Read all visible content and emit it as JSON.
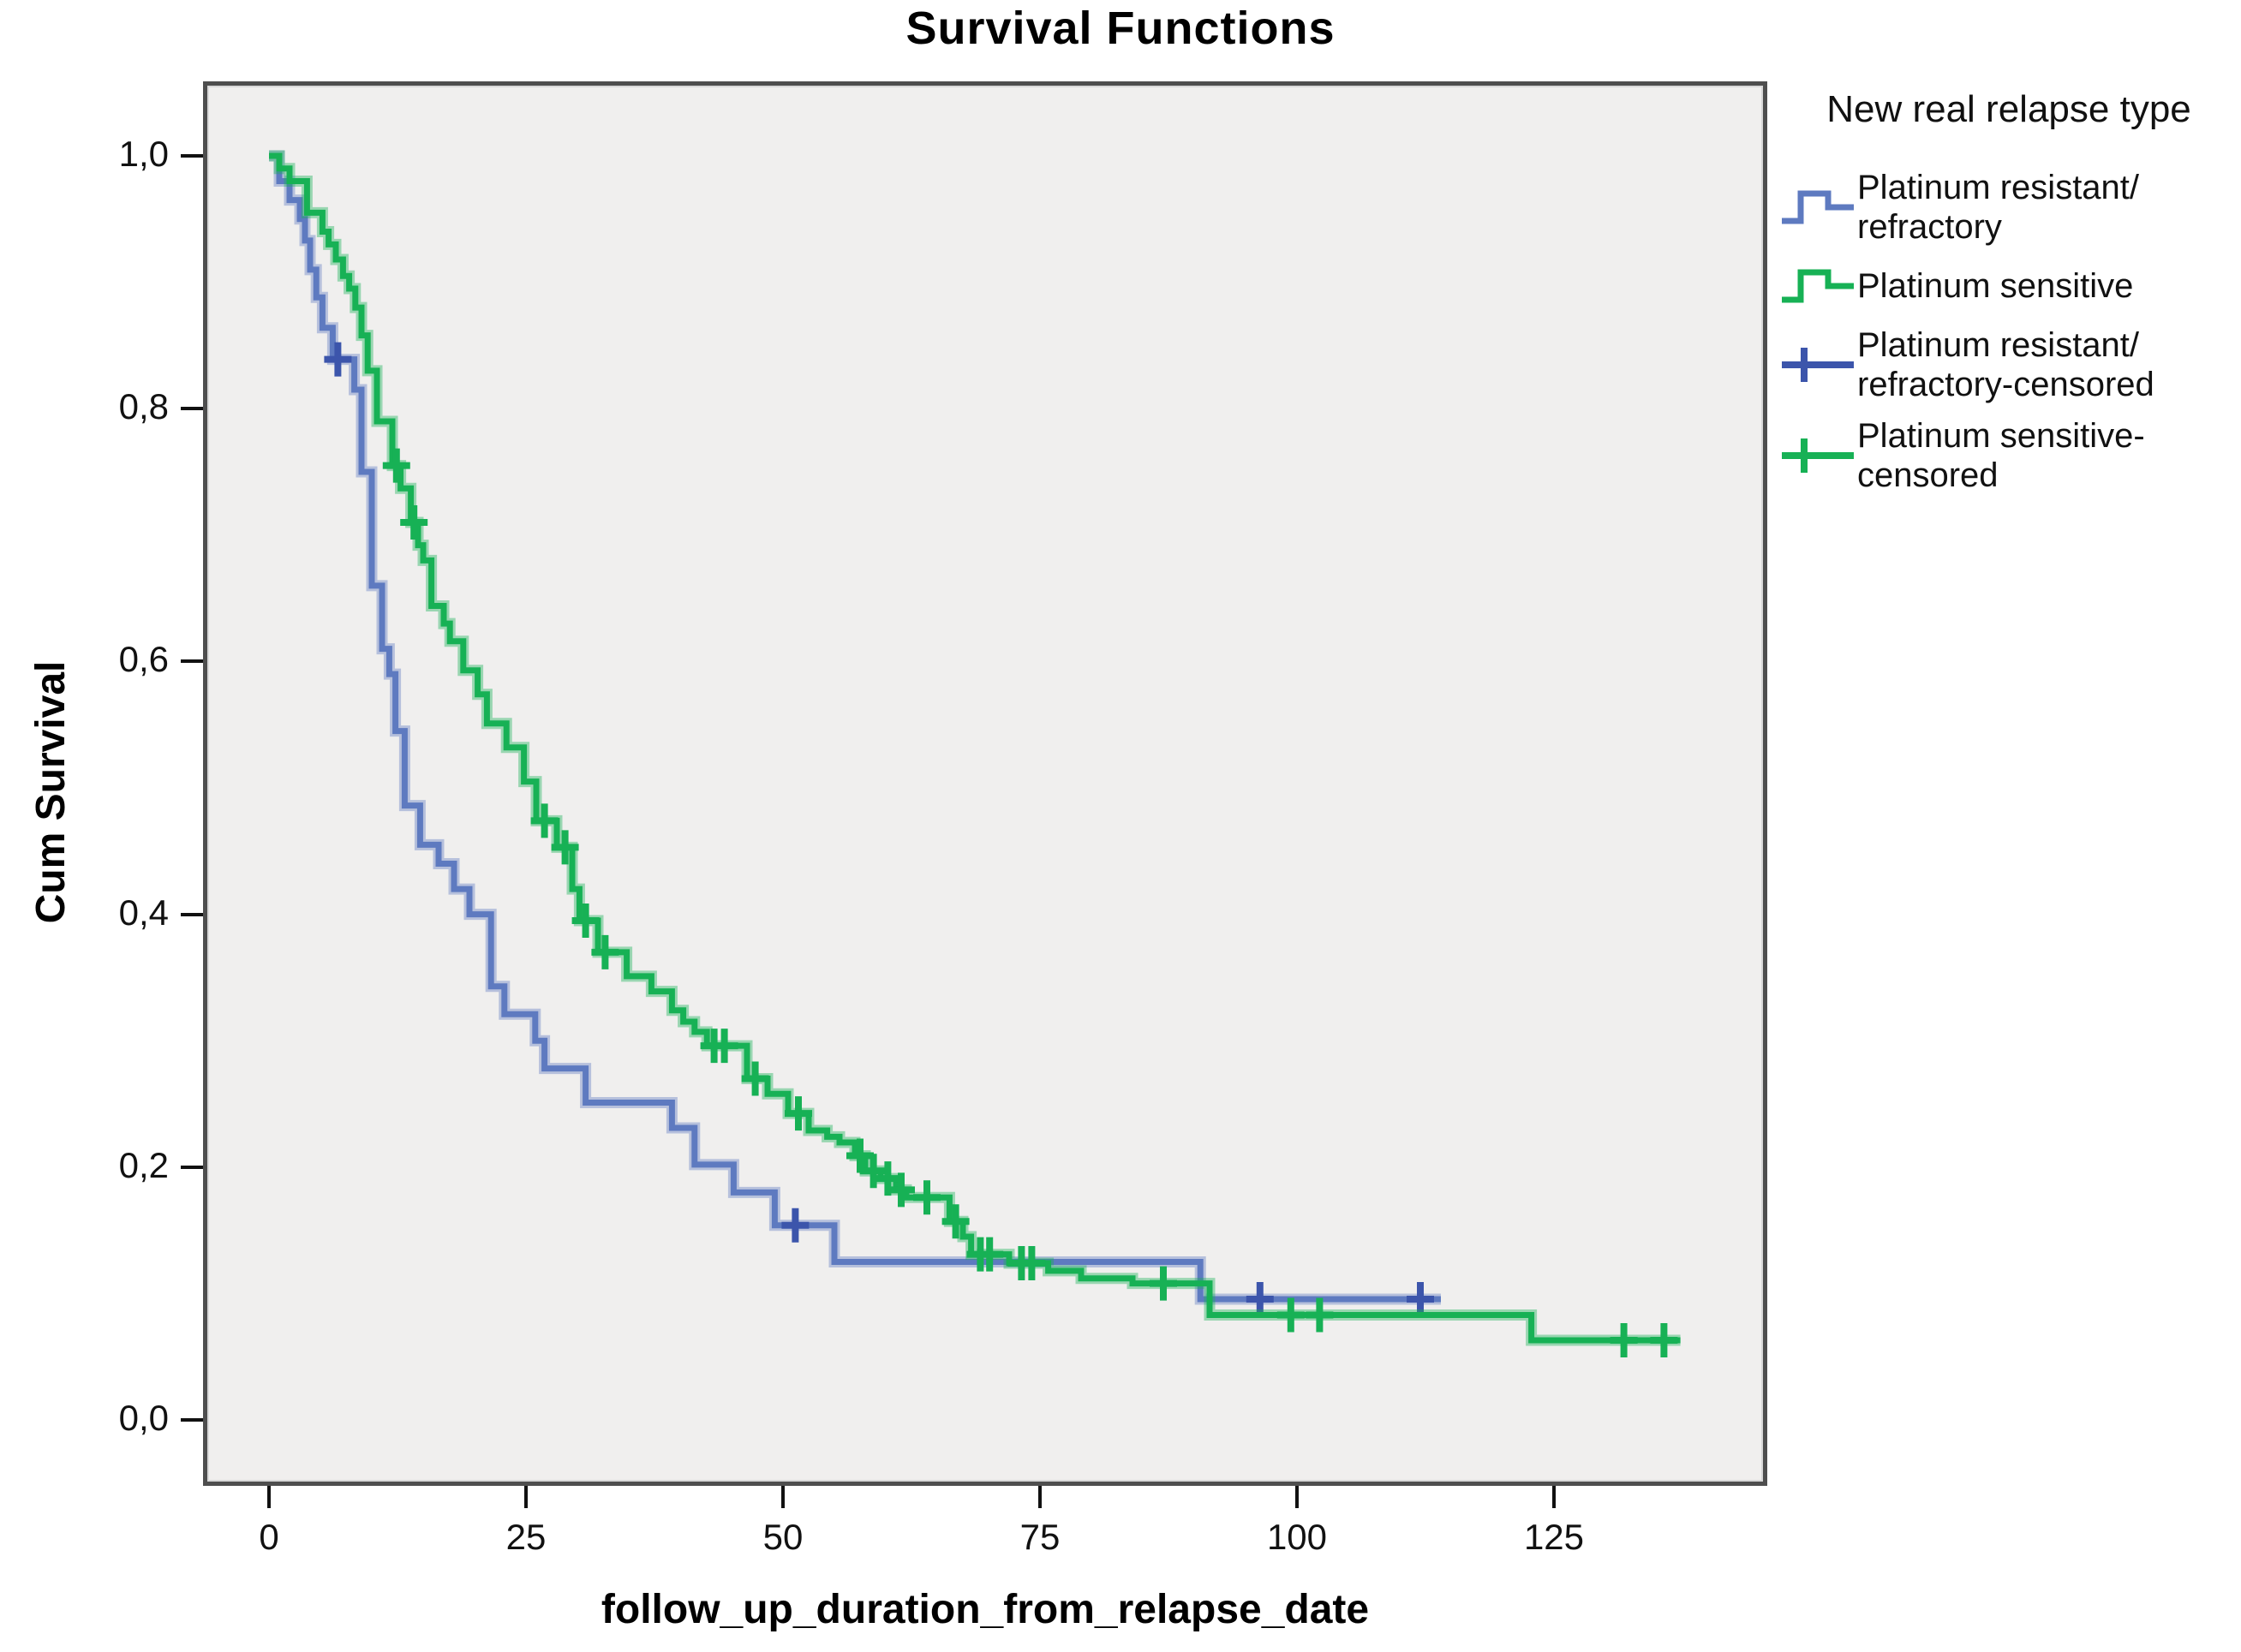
{
  "title": "Survival Functions",
  "axes": {
    "x": {
      "label": "follow_up_duration_from_relapse_date",
      "ticks": [
        0,
        25,
        50,
        75,
        100,
        125
      ]
    },
    "y": {
      "label": "Cum Survival",
      "ticks": [
        {
          "value": 0.0,
          "label": "0,0"
        },
        {
          "value": 0.2,
          "label": "0,2"
        },
        {
          "value": 0.4,
          "label": "0,4"
        },
        {
          "value": 0.6,
          "label": "0,6"
        },
        {
          "value": 0.8,
          "label": "0,8"
        },
        {
          "value": 1.0,
          "label": "1,0"
        }
      ]
    }
  },
  "legend": {
    "title": "New real relapse type",
    "items": [
      {
        "label": "Platinum resistant/ refractory",
        "glyph": "step-line",
        "color_key": "resistant"
      },
      {
        "label": "Platinum sensitive",
        "glyph": "step-line",
        "color_key": "sensitive"
      },
      {
        "label": "Platinum resistant/ refractory-censored",
        "glyph": "censor-line",
        "color_key": "resistant_censor"
      },
      {
        "label": "Platinum sensitive- censored",
        "glyph": "censor-line",
        "color_key": "sensitive_censor"
      }
    ]
  },
  "colors": {
    "resistant": "#5e7ac0",
    "sensitive": "#17b155",
    "resistant_censor": "#3c55ab",
    "sensitive_censor": "#17b155",
    "plot_bg": "#f0efee",
    "frame": "#4e4e4e"
  },
  "chart_data": {
    "type": "line",
    "subtype": "kaplan-meier-step",
    "title": "Survival Functions",
    "xlabel": "follow_up_duration_from_relapse_date",
    "ylabel": "Cum Survival",
    "xlim": [
      -6,
      146
    ],
    "ylim": [
      0.0,
      1.0
    ],
    "grid": false,
    "legend_position": "right",
    "series": [
      {
        "name": "Platinum resistant/refractory",
        "color_key": "resistant",
        "start": [
          0,
          1.0
        ],
        "steps": [
          [
            1,
            0.98
          ],
          [
            2,
            0.965
          ],
          [
            3,
            0.95
          ],
          [
            3.5,
            0.933
          ],
          [
            4,
            0.91
          ],
          [
            4.6,
            0.888
          ],
          [
            5.2,
            0.864
          ],
          [
            6.2,
            0.839
          ],
          [
            8.3,
            0.815
          ],
          [
            9,
            0.75
          ],
          [
            10,
            0.66
          ],
          [
            11,
            0.61
          ],
          [
            11.7,
            0.59
          ],
          [
            12.3,
            0.545
          ],
          [
            13.2,
            0.486
          ],
          [
            14.7,
            0.455
          ],
          [
            16.5,
            0.44
          ],
          [
            18,
            0.42
          ],
          [
            19.5,
            0.4
          ],
          [
            21.6,
            0.343
          ],
          [
            22.9,
            0.321
          ],
          [
            25.9,
            0.3
          ],
          [
            26.8,
            0.278
          ],
          [
            30.8,
            0.251
          ],
          [
            39.2,
            0.231
          ],
          [
            41.4,
            0.202
          ],
          [
            45.2,
            0.18
          ],
          [
            49.2,
            0.154
          ],
          [
            55,
            0.125
          ],
          [
            90.6,
            0.0955
          ]
        ],
        "end_x": 114,
        "censored": [
          [
            6.7,
            0.839
          ],
          [
            51.2,
            0.154
          ],
          [
            96.4,
            0.0955
          ],
          [
            112,
            0.0955
          ]
        ]
      },
      {
        "name": "Platinum sensitive",
        "color_key": "sensitive",
        "start": [
          0,
          1.0
        ],
        "steps": [
          [
            1,
            0.99
          ],
          [
            2,
            0.98
          ],
          [
            3.7,
            0.955
          ],
          [
            5.2,
            0.94
          ],
          [
            5.8,
            0.93
          ],
          [
            6.5,
            0.918
          ],
          [
            7.2,
            0.905
          ],
          [
            7.8,
            0.895
          ],
          [
            8.4,
            0.88
          ],
          [
            9,
            0.858
          ],
          [
            9.6,
            0.83
          ],
          [
            10.5,
            0.79
          ],
          [
            12,
            0.755
          ],
          [
            12.8,
            0.737
          ],
          [
            13.8,
            0.71
          ],
          [
            14.5,
            0.692
          ],
          [
            15,
            0.68
          ],
          [
            15.8,
            0.644
          ],
          [
            17,
            0.63
          ],
          [
            17.6,
            0.616
          ],
          [
            18.9,
            0.593
          ],
          [
            20.3,
            0.574
          ],
          [
            21.2,
            0.551
          ],
          [
            23.1,
            0.532
          ],
          [
            24.8,
            0.505
          ],
          [
            26,
            0.474
          ],
          [
            28,
            0.453
          ],
          [
            29.5,
            0.42
          ],
          [
            30.2,
            0.395
          ],
          [
            32,
            0.37
          ],
          [
            34.8,
            0.351
          ],
          [
            37.2,
            0.339
          ],
          [
            39.2,
            0.324
          ],
          [
            40.3,
            0.315
          ],
          [
            41.4,
            0.307
          ],
          [
            42.6,
            0.296
          ],
          [
            46.5,
            0.27
          ],
          [
            48.5,
            0.258
          ],
          [
            50.5,
            0.2425
          ],
          [
            52.5,
            0.229
          ],
          [
            54.3,
            0.224
          ],
          [
            55.5,
            0.2195
          ],
          [
            57,
            0.209
          ],
          [
            58,
            0.197
          ],
          [
            59.5,
            0.191
          ],
          [
            61,
            0.182
          ],
          [
            62,
            0.176
          ],
          [
            66.2,
            0.157
          ],
          [
            67.5,
            0.145
          ],
          [
            68.3,
            0.131
          ],
          [
            72,
            0.124
          ],
          [
            75.8,
            0.118
          ],
          [
            79,
            0.112
          ],
          [
            84,
            0.108
          ],
          [
            91.5,
            0.083
          ],
          [
            122.8,
            0.063
          ]
        ],
        "end_x": 137.3,
        "censored": [
          [
            12.4,
            0.755
          ],
          [
            14.1,
            0.71
          ],
          [
            26.8,
            0.474
          ],
          [
            28.8,
            0.453
          ],
          [
            30.8,
            0.395
          ],
          [
            32.7,
            0.37
          ],
          [
            43.3,
            0.296
          ],
          [
            44.3,
            0.296
          ],
          [
            47.3,
            0.27
          ],
          [
            51.5,
            0.2425
          ],
          [
            57.5,
            0.209
          ],
          [
            58.8,
            0.197
          ],
          [
            60.2,
            0.191
          ],
          [
            61.5,
            0.182
          ],
          [
            64,
            0.176
          ],
          [
            66.8,
            0.157
          ],
          [
            69.2,
            0.131
          ],
          [
            70.1,
            0.131
          ],
          [
            73.2,
            0.124
          ],
          [
            74.2,
            0.124
          ],
          [
            87,
            0.108
          ],
          [
            99.4,
            0.083
          ],
          [
            102.2,
            0.083
          ],
          [
            131.8,
            0.063
          ],
          [
            135.7,
            0.063
          ]
        ]
      }
    ]
  }
}
